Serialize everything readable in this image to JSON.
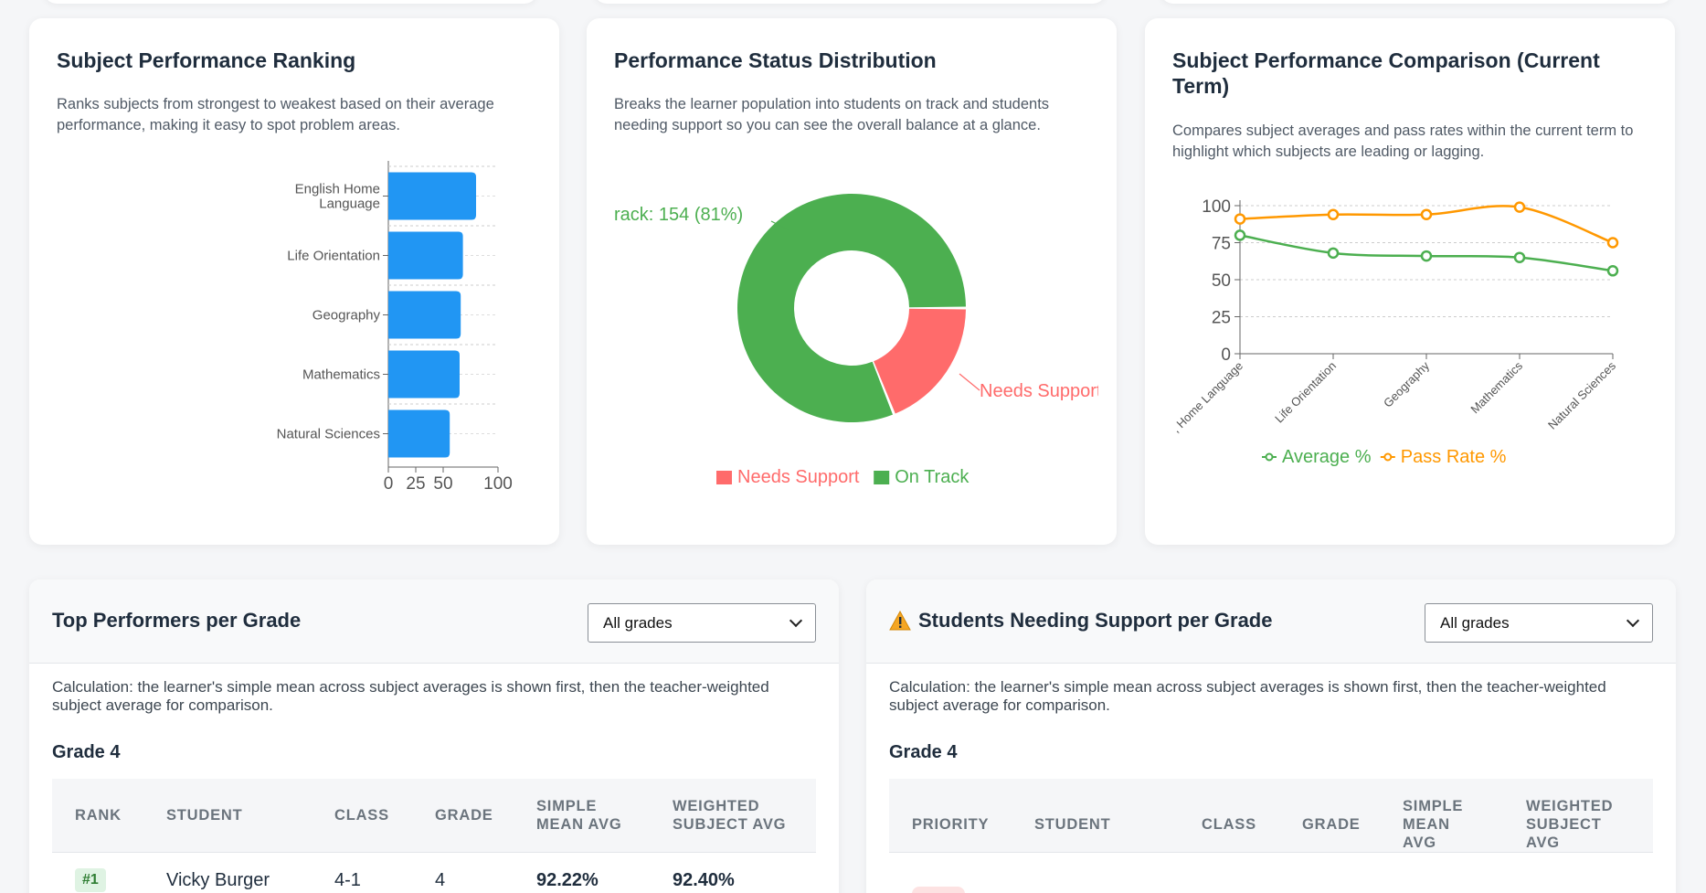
{
  "ranking_card": {
    "title": "Subject Performance Ranking",
    "description": "Ranks subjects from strongest to weakest based on their average performance, making it easy to spot problem areas.",
    "color": "#2196f3"
  },
  "status_card": {
    "title": "Performance Status Distribution",
    "description": "Breaks the learner population into students on track and students needing support so you can see the overall balance at a glance.",
    "label_on_track": "rack: 154 (81%)",
    "label_needs_support": "Needs Support",
    "colors": {
      "on_track": "#4caf50",
      "needs_support": "#ff6b6b"
    }
  },
  "comparison_card": {
    "title": "Subject Performance Comparison (Current Term)",
    "description": "Compares subject averages and pass rates within the current term to highlight which subjects are leading or lagging.",
    "colors": {
      "average": "#4caf50",
      "pass_rate": "#ff9800"
    }
  },
  "chart_data": [
    {
      "type": "bar",
      "orientation": "horizontal",
      "categories": [
        "English Home Language",
        "Life Orientation",
        "Geography",
        "Mathematics",
        "Natural Sciences"
      ],
      "category_display": [
        [
          "English Home",
          "Language"
        ],
        [
          "Life Orientation"
        ],
        [
          "Geography"
        ],
        [
          "Mathematics"
        ],
        [
          "Natural Sciences"
        ]
      ],
      "values": [
        80,
        68,
        66,
        65,
        56
      ],
      "xlim": [
        0,
        100
      ],
      "xticks": [
        "0",
        "25",
        "50",
        "100"
      ],
      "xtick_values": [
        0,
        25,
        50,
        100
      ],
      "grid": true
    },
    {
      "type": "pie",
      "donut": true,
      "labels": [
        "Needs Support",
        "On Track"
      ],
      "values": [
        36,
        154
      ],
      "legend": "bottom"
    },
    {
      "type": "line",
      "categories": [
        "English Home Language",
        "Life Orientation",
        "Geography",
        "Mathematics",
        "Natural Sciences"
      ],
      "category_display": [
        ", Home Language",
        "Life Orientation",
        "Geography",
        "Mathematics",
        "Natural Sciences"
      ],
      "series": [
        {
          "name": "Average %",
          "values": [
            80,
            68,
            66,
            65,
            56
          ]
        },
        {
          "name": "Pass Rate %",
          "values": [
            91,
            94,
            94,
            99,
            75
          ]
        }
      ],
      "ylim": [
        0,
        100
      ],
      "yticks": [
        "0",
        "25",
        "50",
        "75",
        "100"
      ],
      "ytick_values": [
        0,
        25,
        50,
        75,
        100
      ],
      "grid": true,
      "legend": "bottom"
    }
  ],
  "top_performers": {
    "title": "Top Performers per Grade",
    "select_value": "All grades",
    "calculation": "Calculation: the learner's simple mean across subject averages is shown first, then the teacher-weighted subject average for comparison.",
    "grade_heading": "Grade 4",
    "headers": {
      "rank": "RANK",
      "student": "STUDENT",
      "class": "CLASS",
      "grade": "GRADE",
      "simple_1": "SIMPLE",
      "simple_2": "MEAN AVG",
      "weighted_1": "WEIGHTED",
      "weighted_2": "SUBJECT AVG"
    },
    "row": {
      "rank": "#1",
      "student": "Vicky Burger",
      "class": "4-1",
      "grade": "4",
      "simple": "92.22%",
      "weighted": "92.40%"
    }
  },
  "needs_support": {
    "title": "Students Needing Support per Grade",
    "select_value": "All grades",
    "calculation": "Calculation: the learner's simple mean across subject averages is shown first, then the teacher-weighted subject average for comparison.",
    "grade_heading": "Grade 4",
    "headers": {
      "priority": "PRIORITY",
      "student": "STUDENT",
      "class": "CLASS",
      "grade": "GRADE",
      "simple_1": "SIMPLE",
      "simple_2": "MEAN",
      "simple_3": "AVG",
      "weighted_1": "WEIGHTED",
      "weighted_2": "SUBJECT",
      "weighted_3": "AVG"
    }
  }
}
